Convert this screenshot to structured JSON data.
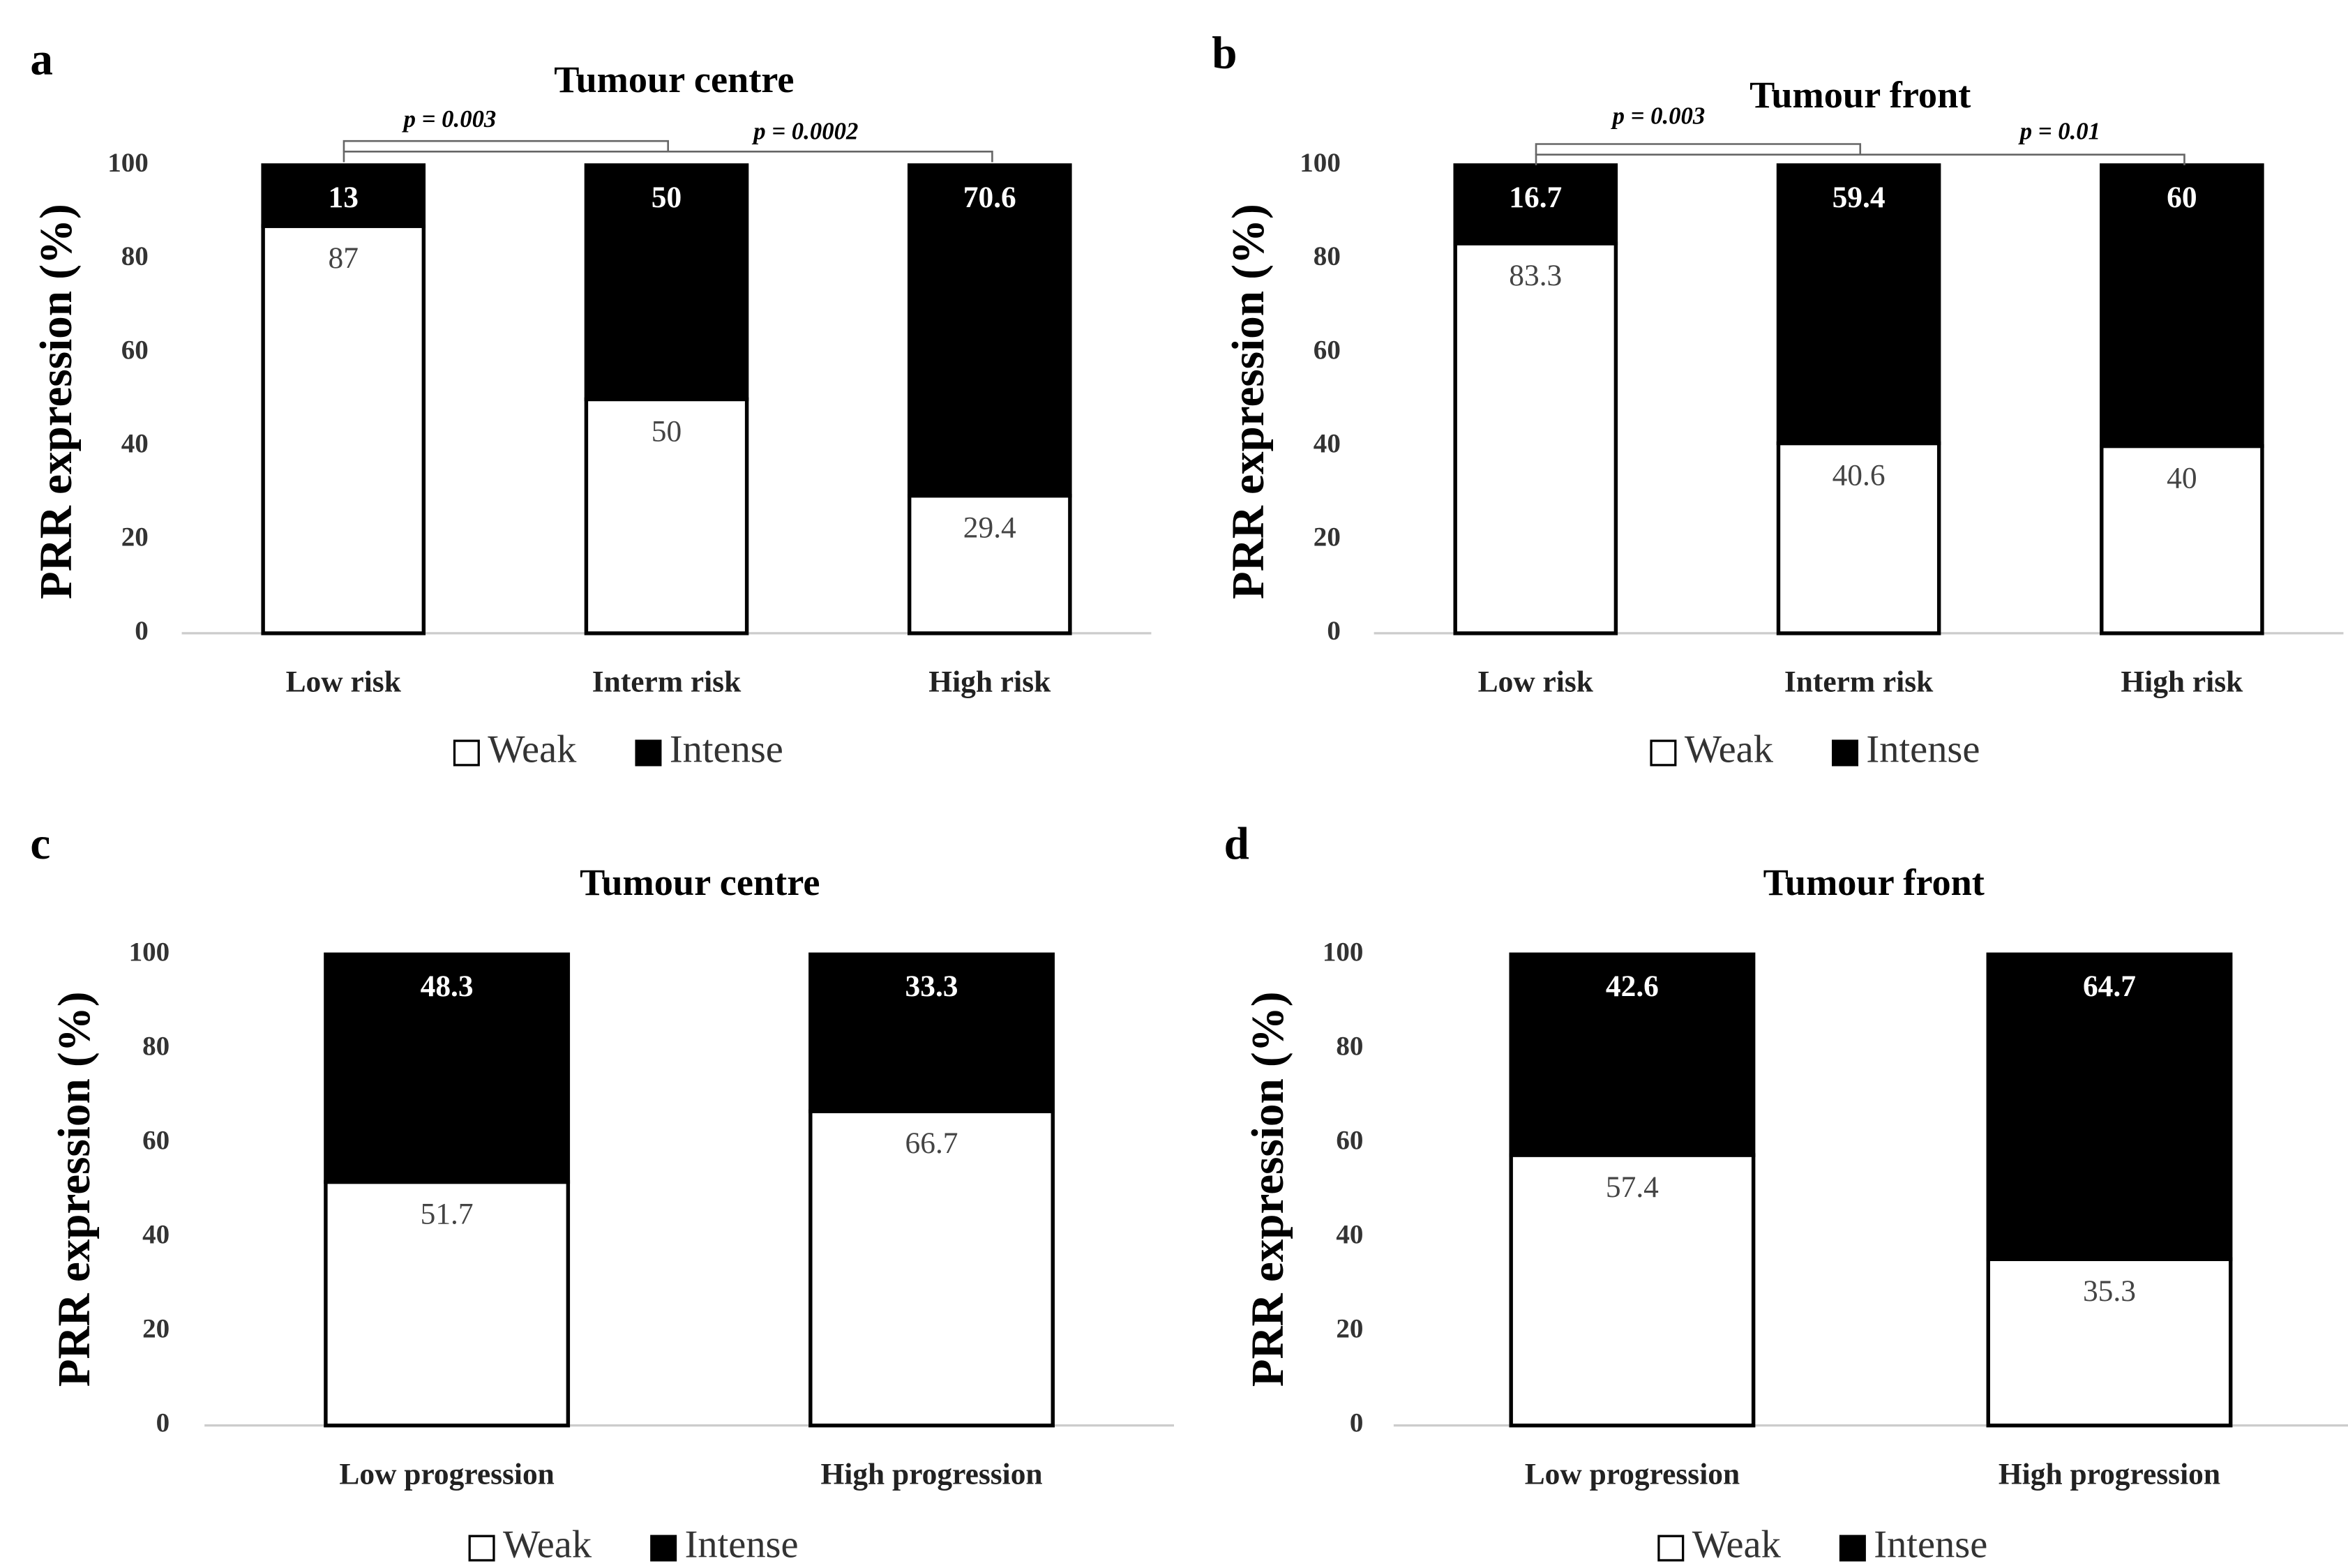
{
  "chart_data": [
    {
      "type": "stacked-bar",
      "panel": "a",
      "title": "Tumour centre",
      "y_label": "PRR expression (%)",
      "categories": [
        "Low risk",
        "Interm risk",
        "High risk"
      ],
      "series": [
        {
          "name": "Weak",
          "color": "#ffffff",
          "values": [
            87,
            50,
            29.4
          ]
        },
        {
          "name": "Intense",
          "color": "#000000",
          "values": [
            13,
            50,
            70.6
          ]
        }
      ],
      "ylim": [
        0,
        100
      ],
      "yticks": [
        0,
        20,
        40,
        60,
        80,
        100
      ],
      "annotations": [
        "p = 0.003",
        "p = 0.0002"
      ]
    },
    {
      "type": "stacked-bar",
      "panel": "b",
      "title": "Tumour front",
      "y_label": "PRR expression (%)",
      "categories": [
        "Low risk",
        "Interm risk",
        "High risk"
      ],
      "series": [
        {
          "name": "Weak",
          "color": "#ffffff",
          "values": [
            83.3,
            40.6,
            40
          ]
        },
        {
          "name": "Intense",
          "color": "#000000",
          "values": [
            16.7,
            59.4,
            60
          ]
        }
      ],
      "ylim": [
        0,
        100
      ],
      "yticks": [
        0,
        20,
        40,
        60,
        80,
        100
      ],
      "annotations": [
        "p = 0.003",
        "p = 0.01"
      ]
    },
    {
      "type": "stacked-bar",
      "panel": "c",
      "title": "Tumour centre",
      "y_label": "PRR expression (%)",
      "categories": [
        "Low progression",
        "High progression"
      ],
      "series": [
        {
          "name": "Weak",
          "color": "#ffffff",
          "values": [
            51.7,
            66.7
          ]
        },
        {
          "name": "Intense",
          "color": "#000000",
          "values": [
            48.3,
            33.3
          ]
        }
      ],
      "ylim": [
        0,
        100
      ],
      "yticks": [
        0,
        20,
        40,
        60,
        80,
        100
      ]
    },
    {
      "type": "stacked-bar",
      "panel": "d",
      "title": "Tumour front",
      "y_label": "PRR expression (%)",
      "categories": [
        "Low progression",
        "High progression"
      ],
      "series": [
        {
          "name": "Weak",
          "color": "#ffffff",
          "values": [
            57.4,
            35.3
          ]
        },
        {
          "name": "Intense",
          "color": "#000000",
          "values": [
            42.6,
            64.7
          ]
        }
      ],
      "ylim": [
        0,
        100
      ],
      "yticks": [
        0,
        20,
        40,
        60,
        80,
        100
      ]
    }
  ]
}
